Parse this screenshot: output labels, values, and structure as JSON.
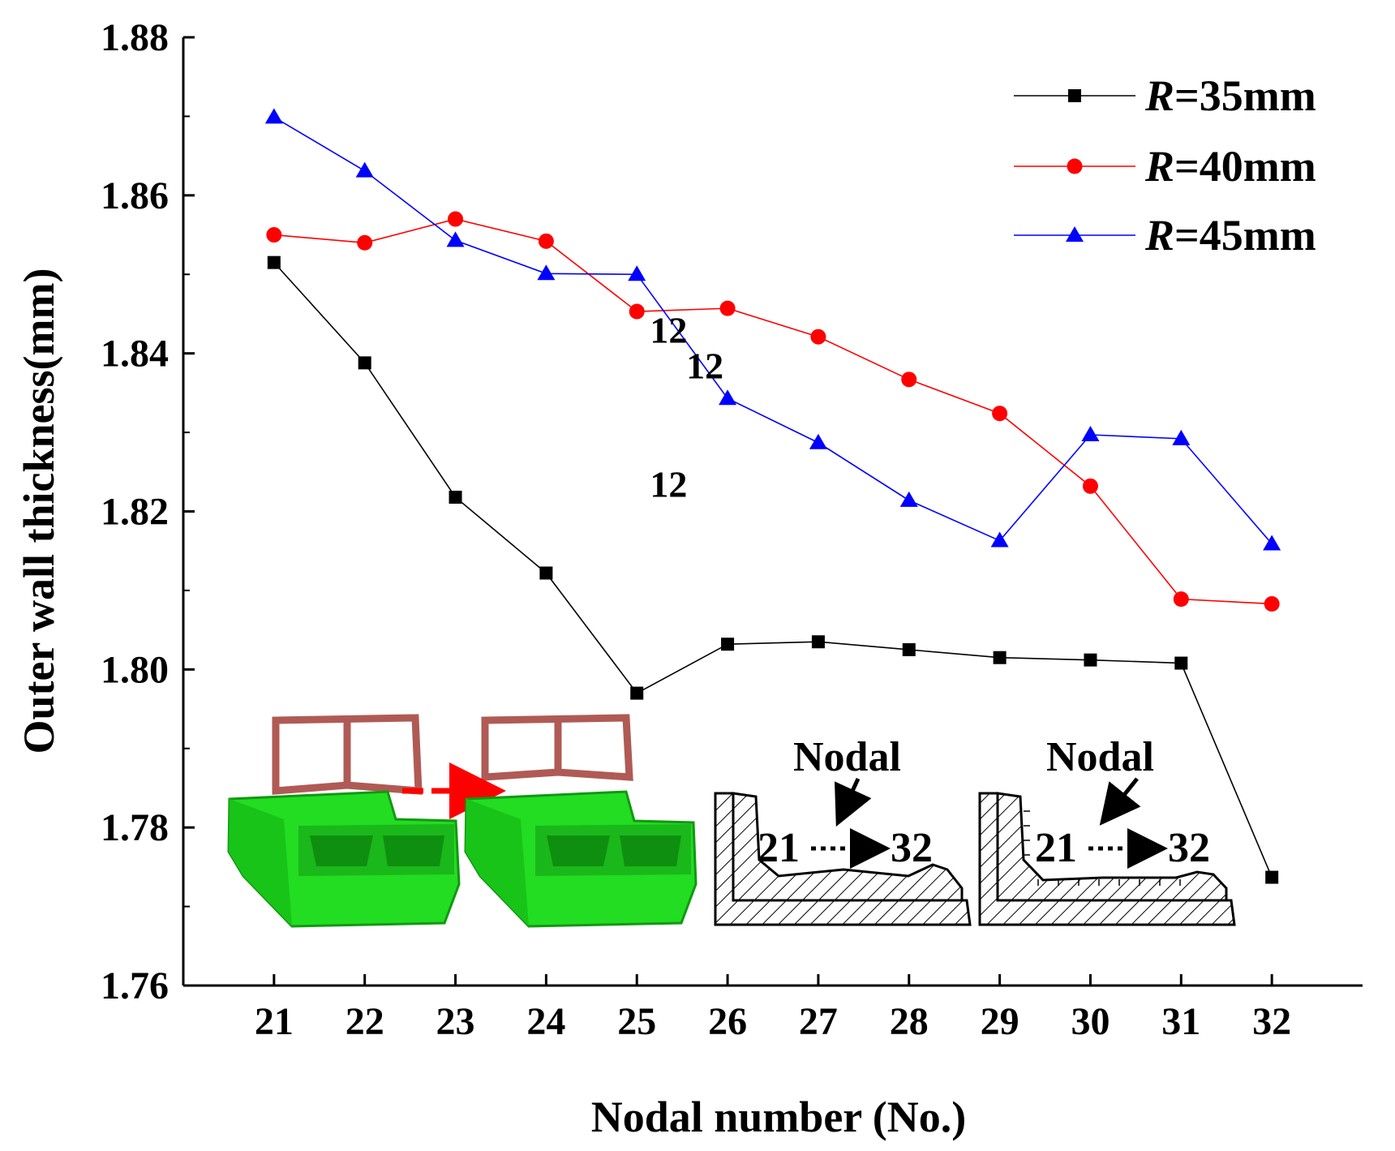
{
  "chart_data": {
    "type": "line",
    "title": "",
    "xlabel": "Nodal number (No.)",
    "ylabel": "Outer wall thickness(mm)",
    "x": [
      21,
      22,
      23,
      24,
      25,
      26,
      27,
      28,
      29,
      30,
      31,
      32
    ],
    "xlim": [
      20,
      33
    ],
    "ylim": [
      1.76,
      1.88
    ],
    "yticks": [
      "1.76",
      "1.78",
      "1.80",
      "1.82",
      "1.84",
      "1.86",
      "1.88"
    ],
    "xticks": [
      "21",
      "22",
      "23",
      "24",
      "25",
      "26",
      "27",
      "28",
      "29",
      "30",
      "31",
      "32"
    ],
    "grid": false,
    "legend_position": "top-right",
    "series": [
      {
        "name": "R=35mm",
        "label_italic": "R",
        "label_rest": "=35mm",
        "color": "#000000",
        "marker": "square",
        "values": [
          1.8515,
          1.8388,
          1.8218,
          1.8122,
          1.797,
          1.8032,
          1.8035,
          1.8025,
          1.8015,
          1.8012,
          1.8008,
          1.7737
        ]
      },
      {
        "name": "R=40mm",
        "label_italic": "R",
        "label_rest": "=40mm",
        "color": "#ff0000",
        "marker": "circle",
        "values": [
          1.855,
          1.854,
          1.857,
          1.8542,
          1.8453,
          1.8457,
          1.8421,
          1.8367,
          1.8324,
          1.8232,
          1.8089,
          1.8083
        ]
      },
      {
        "name": "R=45mm",
        "label_italic": "R",
        "label_rest": "=45mm",
        "color": "#0000ff",
        "marker": "triangle",
        "values": [
          1.8699,
          1.8631,
          1.8543,
          1.8501,
          1.85,
          1.8343,
          1.8287,
          1.8214,
          1.8163,
          1.8297,
          1.8292,
          1.8159
        ]
      }
    ],
    "annotations": [
      {
        "text": "12",
        "x": 25.35,
        "y": 1.843
      },
      {
        "text": "12",
        "x": 25.75,
        "y": 1.8385
      },
      {
        "text": "12",
        "x": 25.35,
        "y": 1.8235
      }
    ],
    "insets": {
      "nodal_label_left": "Nodal",
      "nodal_label_right": "Nodal",
      "range_start_left": "21",
      "range_end_left": "32",
      "range_start_right": "21",
      "range_end_right": "32",
      "model_color": "#22dd22",
      "section_color": "#b05a55"
    }
  }
}
